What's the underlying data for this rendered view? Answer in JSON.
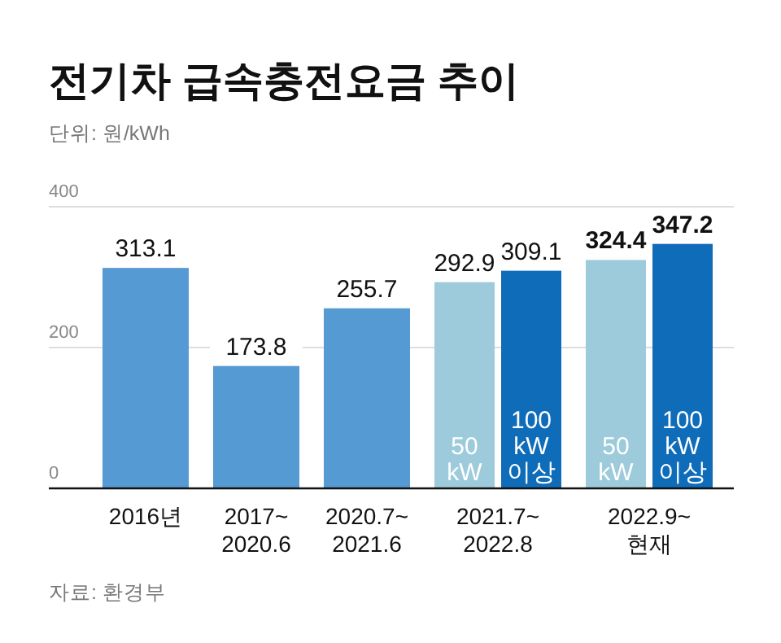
{
  "chart_data": {
    "type": "bar",
    "title": "전기차 급속충전요금 추이",
    "subtitle": "단위: 원/kWh",
    "annotations": [
      "자료: 환경부"
    ],
    "categories": [
      "2016년",
      "2017~\n2020.6",
      "2020.7~\n2021.6",
      "2021.7~\n2022.8",
      "2022.9~\n현재"
    ],
    "series": [
      {
        "color": "#559ad3",
        "values": [
          313.1,
          173.8,
          255.7,
          null,
          null
        ]
      },
      {
        "name": "50 kW",
        "color": "#9dcbdb",
        "values": [
          null,
          null,
          null,
          292.9,
          324.4
        ]
      },
      {
        "name": "100 kW 이상",
        "color": "#0f6cb9",
        "values": [
          null,
          null,
          null,
          309.1,
          347.2
        ]
      }
    ],
    "ylim": [
      0,
      400
    ],
    "yticks": [
      0,
      200,
      400
    ],
    "grid": "y",
    "data_labels": true
  }
}
